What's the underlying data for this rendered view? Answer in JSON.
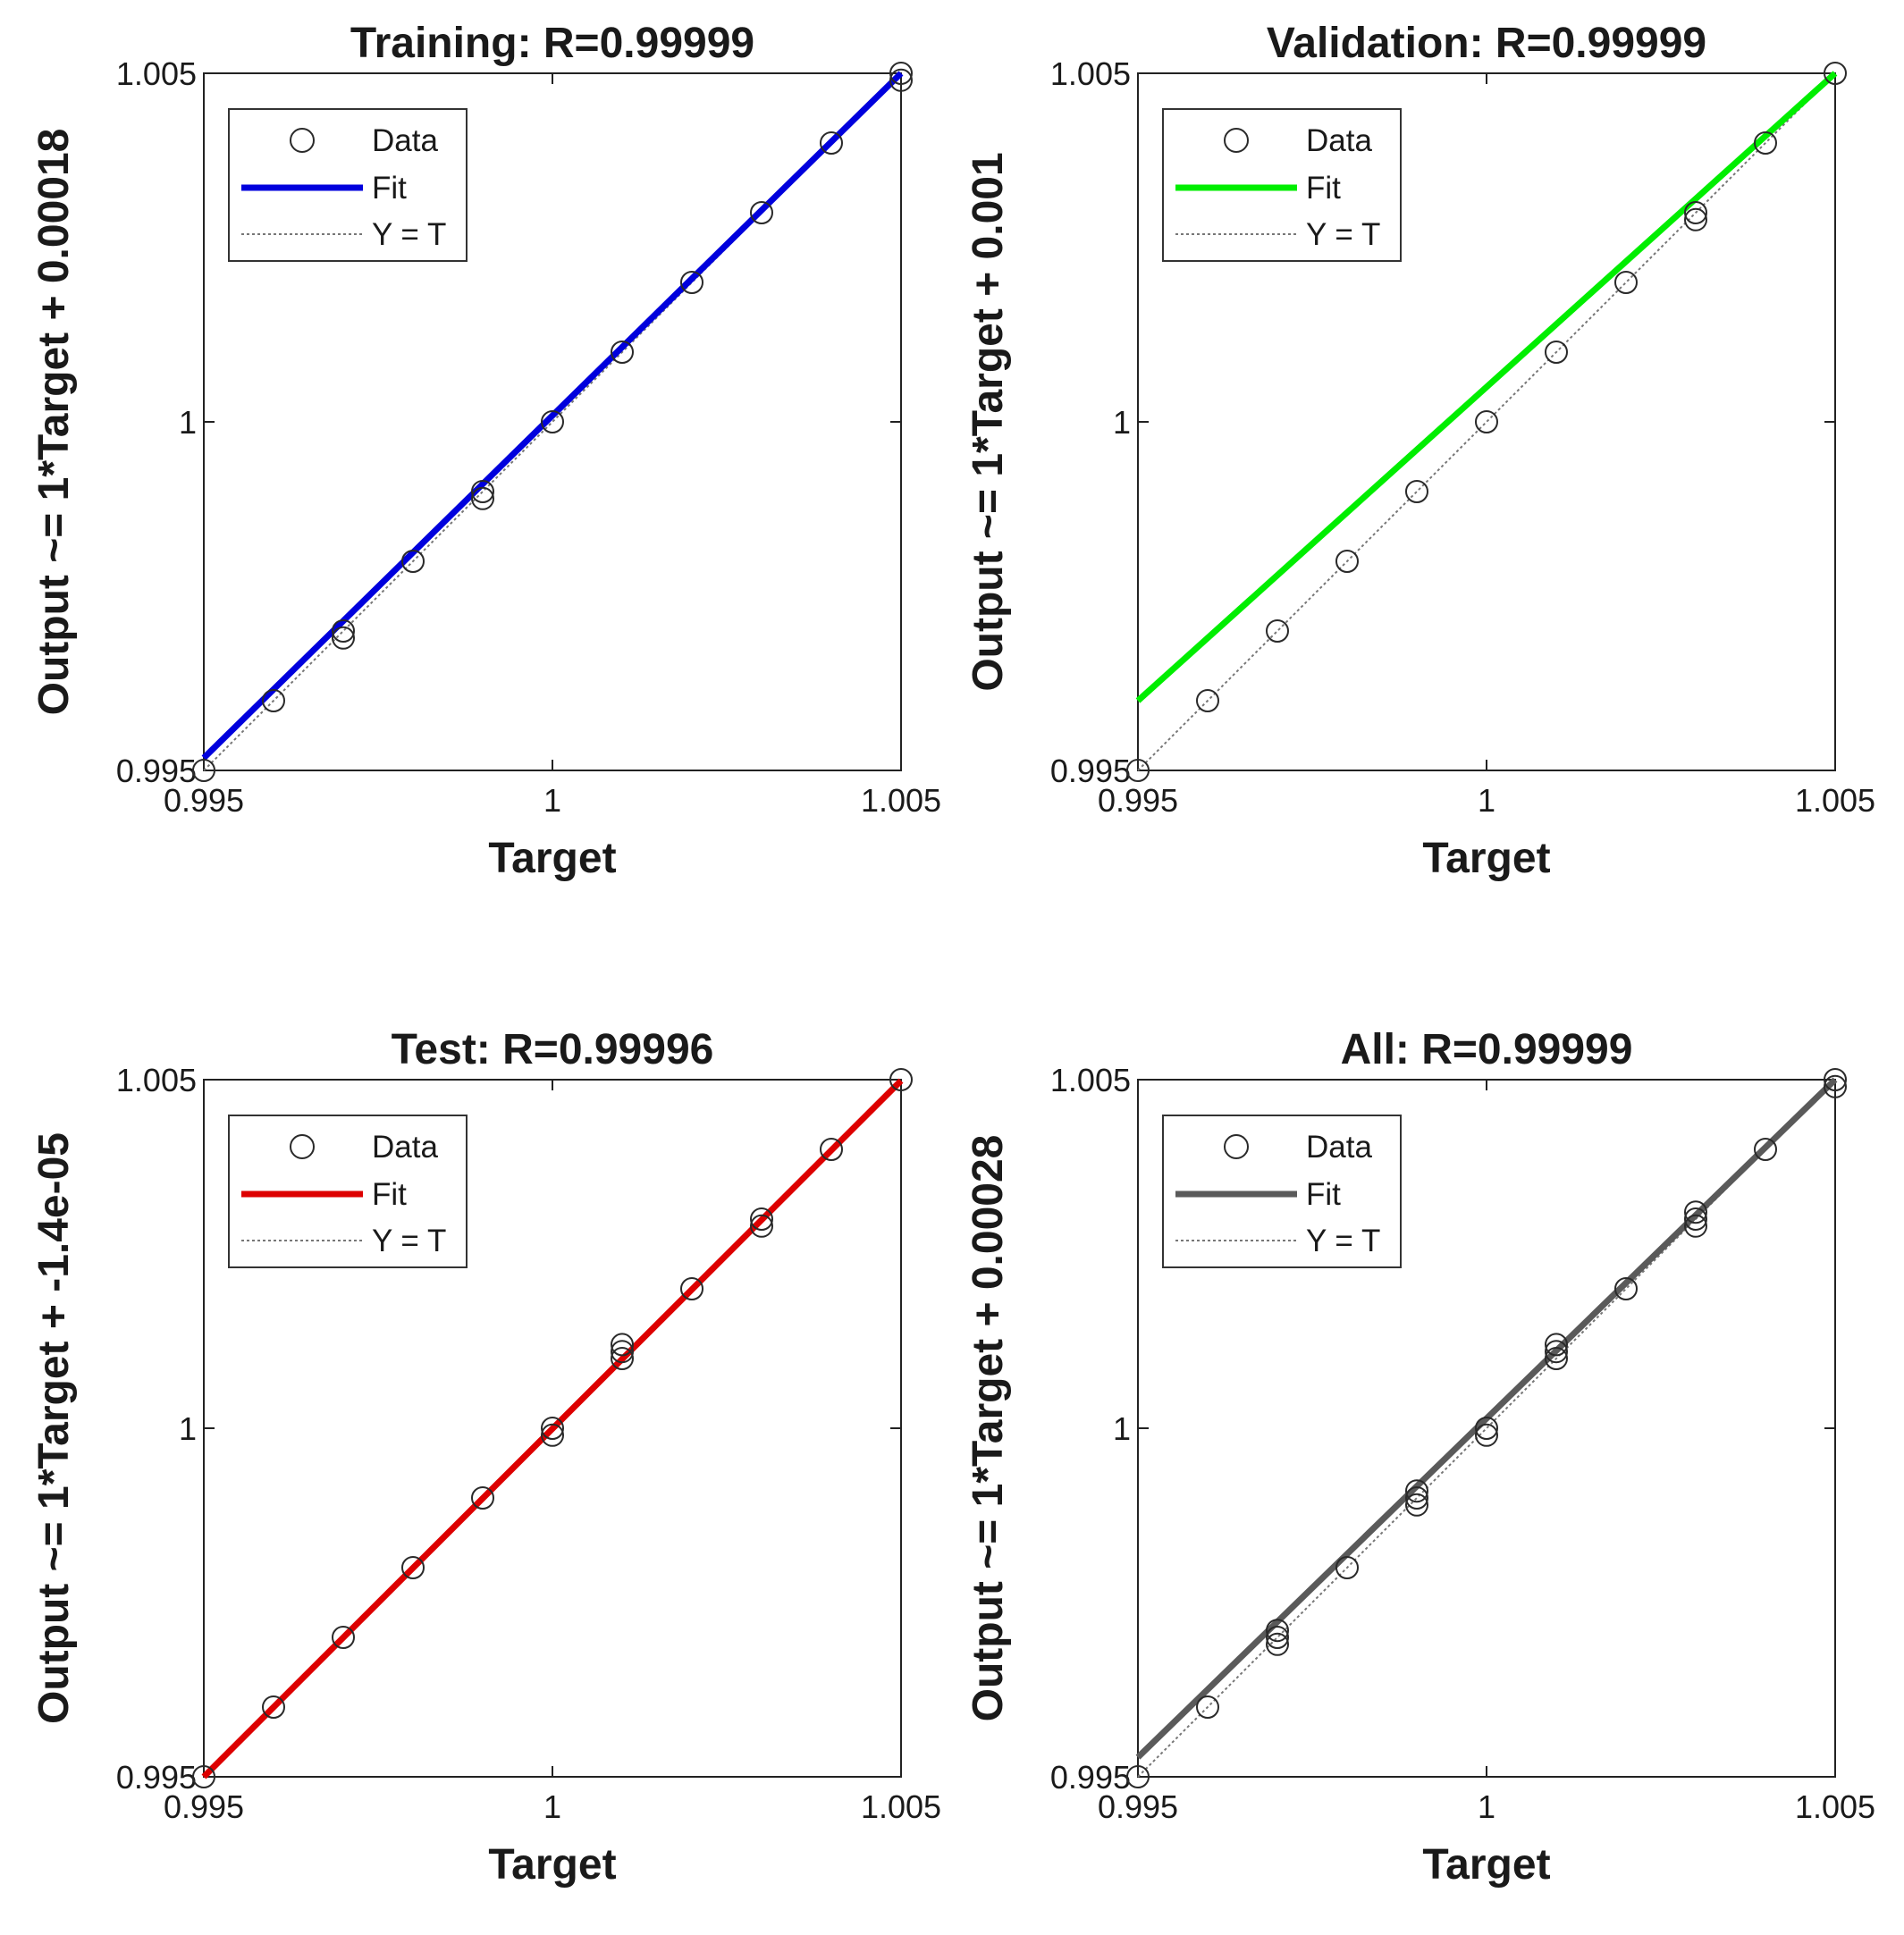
{
  "chart_data": [
    {
      "type": "scatter",
      "title": "Training: R=0.99999",
      "xlabel": "Target",
      "ylabel": "Output ~= 1*Target + 0.00018",
      "xlim": [
        0.995,
        1.005
      ],
      "ylim": [
        0.995,
        1.005
      ],
      "xticks": [
        "0.995",
        "1",
        "1.005"
      ],
      "yticks": [
        "0.995",
        "1",
        "1.005"
      ],
      "fit_color": "#0000dd",
      "legend": {
        "position": "top-left",
        "entries": [
          "Data",
          "Fit",
          "Y = T"
        ]
      },
      "data_points": [
        {
          "x": 0.995,
          "y": 0.995
        },
        {
          "x": 0.996,
          "y": 0.996
        },
        {
          "x": 0.997,
          "y": 0.997
        },
        {
          "x": 0.997,
          "y": 0.9969
        },
        {
          "x": 0.998,
          "y": 0.998
        },
        {
          "x": 0.999,
          "y": 0.999
        },
        {
          "x": 0.999,
          "y": 0.9989
        },
        {
          "x": 1.0,
          "y": 1.0
        },
        {
          "x": 1.001,
          "y": 1.001
        },
        {
          "x": 1.002,
          "y": 1.002
        },
        {
          "x": 1.003,
          "y": 1.003
        },
        {
          "x": 1.004,
          "y": 1.004
        },
        {
          "x": 1.005,
          "y": 1.005
        },
        {
          "x": 1.005,
          "y": 1.0049
        }
      ],
      "fit": {
        "slope": 1,
        "intercept": 0.00018
      }
    },
    {
      "type": "scatter",
      "title": "Validation: R=0.99999",
      "xlabel": "Target",
      "ylabel": "Output ~= 1*Target + 0.001",
      "xlim": [
        0.995,
        1.005
      ],
      "ylim": [
        0.995,
        1.005
      ],
      "xticks": [
        "0.995",
        "1",
        "1.005"
      ],
      "yticks": [
        "0.995",
        "1",
        "1.005"
      ],
      "fit_color": "#00ee00",
      "legend": {
        "position": "top-left",
        "entries": [
          "Data",
          "Fit",
          "Y = T"
        ]
      },
      "data_points": [
        {
          "x": 0.995,
          "y": 0.995
        },
        {
          "x": 0.996,
          "y": 0.996
        },
        {
          "x": 0.997,
          "y": 0.997
        },
        {
          "x": 0.998,
          "y": 0.998
        },
        {
          "x": 0.999,
          "y": 0.999
        },
        {
          "x": 1.0,
          "y": 1.0
        },
        {
          "x": 1.001,
          "y": 1.001
        },
        {
          "x": 1.002,
          "y": 1.002
        },
        {
          "x": 1.003,
          "y": 1.003
        },
        {
          "x": 1.003,
          "y": 1.0029
        },
        {
          "x": 1.004,
          "y": 1.004
        },
        {
          "x": 1.005,
          "y": 1.005
        }
      ],
      "fit": {
        "slope": 1,
        "intercept": 0.001
      }
    },
    {
      "type": "scatter",
      "title": "Test: R=0.99996",
      "xlabel": "Target",
      "ylabel": "Output ~= 1*Target + -1.4e-05",
      "xlim": [
        0.995,
        1.005
      ],
      "ylim": [
        0.995,
        1.005
      ],
      "xticks": [
        "0.995",
        "1",
        "1.005"
      ],
      "yticks": [
        "0.995",
        "1",
        "1.005"
      ],
      "fit_color": "#dd0000",
      "legend": {
        "position": "top-left",
        "entries": [
          "Data",
          "Fit",
          "Y = T"
        ]
      },
      "data_points": [
        {
          "x": 0.995,
          "y": 0.995
        },
        {
          "x": 0.996,
          "y": 0.996
        },
        {
          "x": 0.997,
          "y": 0.997
        },
        {
          "x": 0.998,
          "y": 0.998
        },
        {
          "x": 0.999,
          "y": 0.999
        },
        {
          "x": 1.0,
          "y": 1.0
        },
        {
          "x": 1.0,
          "y": 0.9999
        },
        {
          "x": 1.001,
          "y": 1.001
        },
        {
          "x": 1.001,
          "y": 1.0011
        },
        {
          "x": 1.001,
          "y": 1.0012
        },
        {
          "x": 1.002,
          "y": 1.002
        },
        {
          "x": 1.003,
          "y": 1.003
        },
        {
          "x": 1.003,
          "y": 1.0029
        },
        {
          "x": 1.004,
          "y": 1.004
        },
        {
          "x": 1.005,
          "y": 1.005
        }
      ],
      "fit": {
        "slope": 1,
        "intercept": -1.4e-05
      }
    },
    {
      "type": "scatter",
      "title": "All: R=0.99999",
      "xlabel": "Target",
      "ylabel": "Output ~= 1*Target + 0.00028",
      "xlim": [
        0.995,
        1.005
      ],
      "ylim": [
        0.995,
        1.005
      ],
      "xticks": [
        "0.995",
        "1",
        "1.005"
      ],
      "yticks": [
        "0.995",
        "1",
        "1.005"
      ],
      "fit_color": "#5a5a5a",
      "legend": {
        "position": "top-left",
        "entries": [
          "Data",
          "Fit",
          "Y = T"
        ]
      },
      "data_points": [
        {
          "x": 0.995,
          "y": 0.995
        },
        {
          "x": 0.996,
          "y": 0.996
        },
        {
          "x": 0.997,
          "y": 0.997
        },
        {
          "x": 0.997,
          "y": 0.9969
        },
        {
          "x": 0.997,
          "y": 0.9971
        },
        {
          "x": 0.998,
          "y": 0.998
        },
        {
          "x": 0.999,
          "y": 0.999
        },
        {
          "x": 0.999,
          "y": 0.9989
        },
        {
          "x": 0.999,
          "y": 0.9991
        },
        {
          "x": 1.0,
          "y": 1.0
        },
        {
          "x": 1.0,
          "y": 0.9999
        },
        {
          "x": 1.001,
          "y": 1.001
        },
        {
          "x": 1.001,
          "y": 1.0011
        },
        {
          "x": 1.001,
          "y": 1.0012
        },
        {
          "x": 1.002,
          "y": 1.002
        },
        {
          "x": 1.003,
          "y": 1.003
        },
        {
          "x": 1.003,
          "y": 1.0029
        },
        {
          "x": 1.003,
          "y": 1.0031
        },
        {
          "x": 1.004,
          "y": 1.004
        },
        {
          "x": 1.005,
          "y": 1.005
        },
        {
          "x": 1.005,
          "y": 1.0049
        }
      ],
      "fit": {
        "slope": 1,
        "intercept": 0.00028
      }
    }
  ]
}
